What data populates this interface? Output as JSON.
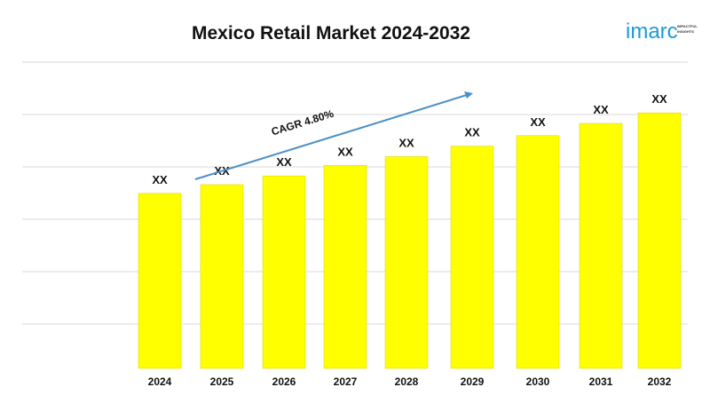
{
  "chart_data": {
    "type": "bar",
    "title": "Mexico Retail Market 2024-2032",
    "categories": [
      "2024",
      "2025",
      "2026",
      "2027",
      "2028",
      "2029",
      "2030",
      "2031",
      "2032"
    ],
    "values": [
      100,
      105,
      110,
      116,
      121,
      127,
      133,
      140,
      146
    ],
    "data_labels": [
      "XX",
      "XX",
      "XX",
      "XX",
      "XX",
      "XX",
      "XX",
      "XX",
      "XX"
    ],
    "annotation": "CAGR 4.80%",
    "xlabel": "",
    "ylabel": "",
    "ylim": [
      0,
      175
    ],
    "grid": true,
    "legend": "none",
    "bar_color": "#ffff00",
    "bar_stroke": "#d4d400",
    "arrow_color": "#4a90c8",
    "grid_color": "#d9d9d9"
  },
  "logo": {
    "name": "imarc",
    "tagline": "IMPACTFUL INSIGHTS"
  }
}
